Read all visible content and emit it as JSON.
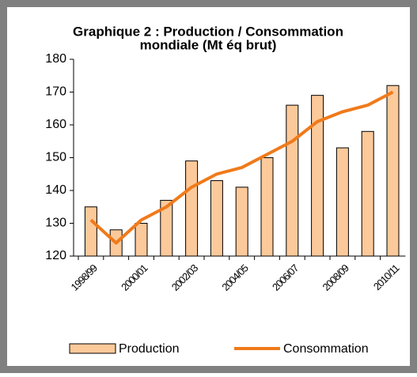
{
  "chart_data": {
    "type": "bar",
    "title_lines": [
      "Graphique 2 : Production / Consommation",
      "mondiale (Mt éq brut)"
    ],
    "categories": [
      "1998/99",
      null,
      "2000/01",
      null,
      "2002/03",
      null,
      "2004/05",
      null,
      "2006/07",
      null,
      "2008/09",
      null,
      "2010/11"
    ],
    "series": [
      {
        "name": "Production",
        "type": "bar",
        "color": "#fcc99a",
        "values": [
          135,
          128,
          130,
          137,
          149,
          143,
          141,
          150,
          166,
          169,
          153,
          158,
          172
        ]
      },
      {
        "name": "Consommation",
        "type": "line",
        "color": "#f07a1a",
        "values": [
          131,
          124,
          131,
          135,
          141,
          145,
          147,
          151,
          155,
          161,
          164,
          166,
          170
        ]
      }
    ],
    "ylim": [
      120,
      180
    ],
    "yticks": [
      120,
      130,
      140,
      150,
      160,
      170,
      180
    ]
  }
}
